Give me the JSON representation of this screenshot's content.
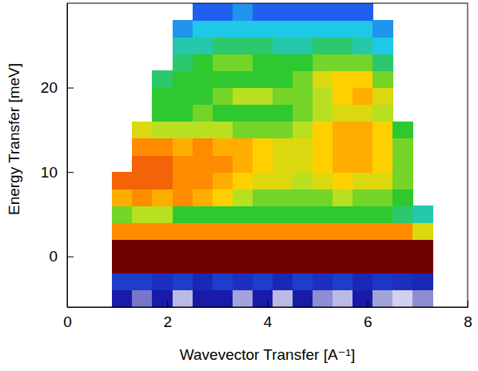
{
  "chart_data": {
    "type": "heatmap",
    "x_label": "Wavevector Transfer [A⁻¹]",
    "y_label": "Energy Transfer [meV]",
    "xlim": [
      0,
      8
    ],
    "xticks": [
      0,
      2,
      4,
      6,
      8
    ],
    "ylim": [
      -6,
      30
    ],
    "yticks": [
      0,
      10,
      20
    ],
    "zlim": [
      0,
      10
    ],
    "x_edges": [
      0.9,
      1.3,
      1.7,
      2.1,
      2.5,
      2.9,
      3.3,
      3.7,
      4.1,
      4.5,
      4.9,
      5.3,
      5.7,
      6.1,
      6.5,
      6.9,
      7.3
    ],
    "y_edges": [
      -6,
      -4,
      -2,
      0,
      2,
      4,
      6,
      8,
      10,
      12,
      14,
      16,
      18,
      20,
      22,
      24,
      26,
      28,
      30
    ],
    "cells": [
      [
        1,
        0.6,
        1,
        0.3,
        1,
        1,
        0.4,
        1,
        0.3,
        1,
        0.5,
        0.3,
        1,
        0.4,
        0.2,
        0.5
      ],
      [
        1.5,
        1.5,
        1.3,
        1.5,
        1.2,
        1.5,
        1.3,
        1.5,
        1.2,
        1.5,
        1.3,
        1.5,
        1.2,
        1.4,
        1.3,
        1.2
      ],
      [
        10,
        10,
        10,
        10,
        10,
        10,
        10,
        10,
        10,
        10,
        10,
        10,
        10,
        10,
        10,
        10
      ],
      [
        10,
        10,
        10,
        10,
        10,
        10,
        10,
        10,
        10,
        10,
        10,
        10,
        10,
        10,
        10,
        10
      ],
      [
        7.5,
        7.5,
        7.5,
        7.5,
        7.5,
        7.5,
        7.5,
        7.5,
        7.5,
        7.5,
        7.5,
        7.5,
        7.5,
        7.5,
        7.5,
        6
      ],
      [
        5,
        5.5,
        5.5,
        4.5,
        4.5,
        4.5,
        4.5,
        4.5,
        4.5,
        4.5,
        4.5,
        4.5,
        4.5,
        4.5,
        4,
        3.5
      ],
      [
        7,
        7.5,
        7,
        7.5,
        7,
        6.5,
        5.5,
        5,
        5,
        5,
        5,
        5.5,
        5,
        5,
        4.5,
        null
      ],
      [
        8,
        8,
        8,
        7.5,
        7.5,
        7,
        6.5,
        6,
        6,
        5.5,
        6,
        6.5,
        6,
        6,
        5,
        null
      ],
      [
        null,
        8,
        8,
        7.5,
        7.5,
        7.5,
        7,
        6.5,
        6,
        6,
        6.5,
        7,
        7,
        6.5,
        5,
        null
      ],
      [
        null,
        7.5,
        7.5,
        7,
        7.5,
        7,
        7,
        6.5,
        6,
        6,
        6.5,
        7,
        7,
        6.5,
        5,
        null
      ],
      [
        null,
        6,
        5.5,
        5.5,
        5.5,
        5.5,
        5,
        5,
        5,
        5.5,
        6.5,
        7,
        7,
        6.5,
        4.5,
        null
      ],
      [
        null,
        null,
        4.5,
        4.5,
        5,
        4.5,
        4.5,
        4.5,
        4.5,
        5,
        5.5,
        6,
        6,
        5.5,
        null,
        null
      ],
      [
        null,
        null,
        4.5,
        4.5,
        4.5,
        5,
        5.5,
        5.5,
        5,
        5,
        5.5,
        6.5,
        7,
        6,
        null,
        null
      ],
      [
        null,
        null,
        4,
        4.5,
        4.5,
        4.5,
        4.5,
        4.5,
        4.5,
        5,
        6,
        6.5,
        6.5,
        5,
        null,
        null
      ],
      [
        null,
        null,
        null,
        4,
        4.5,
        5,
        5,
        4.5,
        4.5,
        4.5,
        5,
        5,
        5,
        4,
        null,
        null
      ],
      [
        null,
        null,
        null,
        3.5,
        3.5,
        4,
        4,
        4,
        3.5,
        3.5,
        4,
        4,
        3.5,
        3,
        null,
        null
      ],
      [
        null,
        null,
        null,
        2.5,
        3,
        3,
        3,
        3,
        3,
        3,
        3,
        3,
        3,
        2.5,
        null,
        null
      ],
      [
        null,
        null,
        null,
        null,
        2,
        2,
        2.5,
        2,
        2,
        2,
        2,
        2,
        2,
        null,
        null,
        null
      ]
    ]
  }
}
